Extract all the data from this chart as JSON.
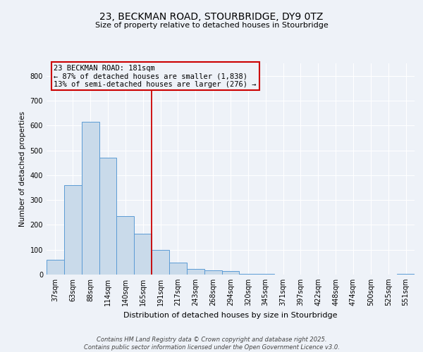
{
  "title_line1": "23, BECKMAN ROAD, STOURBRIDGE, DY9 0TZ",
  "title_line2": "Size of property relative to detached houses in Stourbridge",
  "xlabel": "Distribution of detached houses by size in Stourbridge",
  "ylabel": "Number of detached properties",
  "bar_labels": [
    "37sqm",
    "63sqm",
    "88sqm",
    "114sqm",
    "140sqm",
    "165sqm",
    "191sqm",
    "217sqm",
    "243sqm",
    "268sqm",
    "294sqm",
    "320sqm",
    "345sqm",
    "371sqm",
    "397sqm",
    "422sqm",
    "448sqm",
    "474sqm",
    "500sqm",
    "525sqm",
    "551sqm"
  ],
  "bar_heights": [
    60,
    360,
    615,
    470,
    235,
    163,
    98,
    47,
    22,
    18,
    13,
    4,
    2,
    1,
    1,
    1,
    0,
    0,
    0,
    0,
    3
  ],
  "bar_color": "#c9daea",
  "bar_edge_color": "#5b9bd5",
  "vline_x_idx": 6,
  "vline_color": "#cc0000",
  "annotation_text": "23 BECKMAN ROAD: 181sqm\n← 87% of detached houses are smaller (1,838)\n13% of semi-detached houses are larger (276) →",
  "annotation_box_color": "#cc0000",
  "ylim": [
    0,
    850
  ],
  "yticks": [
    0,
    100,
    200,
    300,
    400,
    500,
    600,
    700,
    800
  ],
  "footer_line1": "Contains HM Land Registry data © Crown copyright and database right 2025.",
  "footer_line2": "Contains public sector information licensed under the Open Government Licence v3.0.",
  "background_color": "#eef2f8",
  "grid_color": "#ffffff",
  "title_fontsize": 10,
  "subtitle_fontsize": 8,
  "xlabel_fontsize": 8,
  "ylabel_fontsize": 7.5,
  "tick_fontsize": 7,
  "footer_fontsize": 6,
  "ann_fontsize": 7.5
}
